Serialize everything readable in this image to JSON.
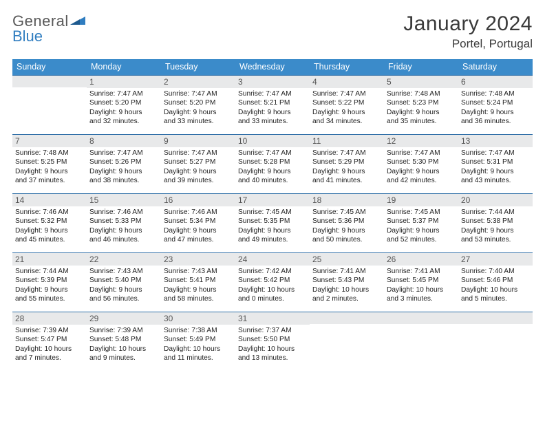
{
  "brand": {
    "part1": "General",
    "part2": "Blue"
  },
  "title": "January 2024",
  "location": "Portel, Portugal",
  "colors": {
    "header_bg": "#3b8bca",
    "header_text": "#ffffff",
    "row_border": "#2f6fa8",
    "daynum_bg": "#e8e9ea",
    "daynum_text": "#555555",
    "body_text": "#222222",
    "brand_gray": "#5a5a5a",
    "brand_blue": "#2f7dc0"
  },
  "typography": {
    "title_fontsize": 30,
    "location_fontsize": 17,
    "dayheader_fontsize": 12.5,
    "daynum_fontsize": 12,
    "cell_fontsize": 10.2
  },
  "day_headers": [
    "Sunday",
    "Monday",
    "Tuesday",
    "Wednesday",
    "Thursday",
    "Friday",
    "Saturday"
  ],
  "weeks": [
    [
      {
        "n": "",
        "sunrise": "",
        "sunset": "",
        "dl1": "",
        "dl2": ""
      },
      {
        "n": "1",
        "sunrise": "Sunrise: 7:47 AM",
        "sunset": "Sunset: 5:20 PM",
        "dl1": "Daylight: 9 hours",
        "dl2": "and 32 minutes."
      },
      {
        "n": "2",
        "sunrise": "Sunrise: 7:47 AM",
        "sunset": "Sunset: 5:20 PM",
        "dl1": "Daylight: 9 hours",
        "dl2": "and 33 minutes."
      },
      {
        "n": "3",
        "sunrise": "Sunrise: 7:47 AM",
        "sunset": "Sunset: 5:21 PM",
        "dl1": "Daylight: 9 hours",
        "dl2": "and 33 minutes."
      },
      {
        "n": "4",
        "sunrise": "Sunrise: 7:47 AM",
        "sunset": "Sunset: 5:22 PM",
        "dl1": "Daylight: 9 hours",
        "dl2": "and 34 minutes."
      },
      {
        "n": "5",
        "sunrise": "Sunrise: 7:48 AM",
        "sunset": "Sunset: 5:23 PM",
        "dl1": "Daylight: 9 hours",
        "dl2": "and 35 minutes."
      },
      {
        "n": "6",
        "sunrise": "Sunrise: 7:48 AM",
        "sunset": "Sunset: 5:24 PM",
        "dl1": "Daylight: 9 hours",
        "dl2": "and 36 minutes."
      }
    ],
    [
      {
        "n": "7",
        "sunrise": "Sunrise: 7:48 AM",
        "sunset": "Sunset: 5:25 PM",
        "dl1": "Daylight: 9 hours",
        "dl2": "and 37 minutes."
      },
      {
        "n": "8",
        "sunrise": "Sunrise: 7:47 AM",
        "sunset": "Sunset: 5:26 PM",
        "dl1": "Daylight: 9 hours",
        "dl2": "and 38 minutes."
      },
      {
        "n": "9",
        "sunrise": "Sunrise: 7:47 AM",
        "sunset": "Sunset: 5:27 PM",
        "dl1": "Daylight: 9 hours",
        "dl2": "and 39 minutes."
      },
      {
        "n": "10",
        "sunrise": "Sunrise: 7:47 AM",
        "sunset": "Sunset: 5:28 PM",
        "dl1": "Daylight: 9 hours",
        "dl2": "and 40 minutes."
      },
      {
        "n": "11",
        "sunrise": "Sunrise: 7:47 AM",
        "sunset": "Sunset: 5:29 PM",
        "dl1": "Daylight: 9 hours",
        "dl2": "and 41 minutes."
      },
      {
        "n": "12",
        "sunrise": "Sunrise: 7:47 AM",
        "sunset": "Sunset: 5:30 PM",
        "dl1": "Daylight: 9 hours",
        "dl2": "and 42 minutes."
      },
      {
        "n": "13",
        "sunrise": "Sunrise: 7:47 AM",
        "sunset": "Sunset: 5:31 PM",
        "dl1": "Daylight: 9 hours",
        "dl2": "and 43 minutes."
      }
    ],
    [
      {
        "n": "14",
        "sunrise": "Sunrise: 7:46 AM",
        "sunset": "Sunset: 5:32 PM",
        "dl1": "Daylight: 9 hours",
        "dl2": "and 45 minutes."
      },
      {
        "n": "15",
        "sunrise": "Sunrise: 7:46 AM",
        "sunset": "Sunset: 5:33 PM",
        "dl1": "Daylight: 9 hours",
        "dl2": "and 46 minutes."
      },
      {
        "n": "16",
        "sunrise": "Sunrise: 7:46 AM",
        "sunset": "Sunset: 5:34 PM",
        "dl1": "Daylight: 9 hours",
        "dl2": "and 47 minutes."
      },
      {
        "n": "17",
        "sunrise": "Sunrise: 7:45 AM",
        "sunset": "Sunset: 5:35 PM",
        "dl1": "Daylight: 9 hours",
        "dl2": "and 49 minutes."
      },
      {
        "n": "18",
        "sunrise": "Sunrise: 7:45 AM",
        "sunset": "Sunset: 5:36 PM",
        "dl1": "Daylight: 9 hours",
        "dl2": "and 50 minutes."
      },
      {
        "n": "19",
        "sunrise": "Sunrise: 7:45 AM",
        "sunset": "Sunset: 5:37 PM",
        "dl1": "Daylight: 9 hours",
        "dl2": "and 52 minutes."
      },
      {
        "n": "20",
        "sunrise": "Sunrise: 7:44 AM",
        "sunset": "Sunset: 5:38 PM",
        "dl1": "Daylight: 9 hours",
        "dl2": "and 53 minutes."
      }
    ],
    [
      {
        "n": "21",
        "sunrise": "Sunrise: 7:44 AM",
        "sunset": "Sunset: 5:39 PM",
        "dl1": "Daylight: 9 hours",
        "dl2": "and 55 minutes."
      },
      {
        "n": "22",
        "sunrise": "Sunrise: 7:43 AM",
        "sunset": "Sunset: 5:40 PM",
        "dl1": "Daylight: 9 hours",
        "dl2": "and 56 minutes."
      },
      {
        "n": "23",
        "sunrise": "Sunrise: 7:43 AM",
        "sunset": "Sunset: 5:41 PM",
        "dl1": "Daylight: 9 hours",
        "dl2": "and 58 minutes."
      },
      {
        "n": "24",
        "sunrise": "Sunrise: 7:42 AM",
        "sunset": "Sunset: 5:42 PM",
        "dl1": "Daylight: 10 hours",
        "dl2": "and 0 minutes."
      },
      {
        "n": "25",
        "sunrise": "Sunrise: 7:41 AM",
        "sunset": "Sunset: 5:43 PM",
        "dl1": "Daylight: 10 hours",
        "dl2": "and 2 minutes."
      },
      {
        "n": "26",
        "sunrise": "Sunrise: 7:41 AM",
        "sunset": "Sunset: 5:45 PM",
        "dl1": "Daylight: 10 hours",
        "dl2": "and 3 minutes."
      },
      {
        "n": "27",
        "sunrise": "Sunrise: 7:40 AM",
        "sunset": "Sunset: 5:46 PM",
        "dl1": "Daylight: 10 hours",
        "dl2": "and 5 minutes."
      }
    ],
    [
      {
        "n": "28",
        "sunrise": "Sunrise: 7:39 AM",
        "sunset": "Sunset: 5:47 PM",
        "dl1": "Daylight: 10 hours",
        "dl2": "and 7 minutes."
      },
      {
        "n": "29",
        "sunrise": "Sunrise: 7:39 AM",
        "sunset": "Sunset: 5:48 PM",
        "dl1": "Daylight: 10 hours",
        "dl2": "and 9 minutes."
      },
      {
        "n": "30",
        "sunrise": "Sunrise: 7:38 AM",
        "sunset": "Sunset: 5:49 PM",
        "dl1": "Daylight: 10 hours",
        "dl2": "and 11 minutes."
      },
      {
        "n": "31",
        "sunrise": "Sunrise: 7:37 AM",
        "sunset": "Sunset: 5:50 PM",
        "dl1": "Daylight: 10 hours",
        "dl2": "and 13 minutes."
      },
      {
        "n": "",
        "sunrise": "",
        "sunset": "",
        "dl1": "",
        "dl2": ""
      },
      {
        "n": "",
        "sunrise": "",
        "sunset": "",
        "dl1": "",
        "dl2": ""
      },
      {
        "n": "",
        "sunrise": "",
        "sunset": "",
        "dl1": "",
        "dl2": ""
      }
    ]
  ]
}
